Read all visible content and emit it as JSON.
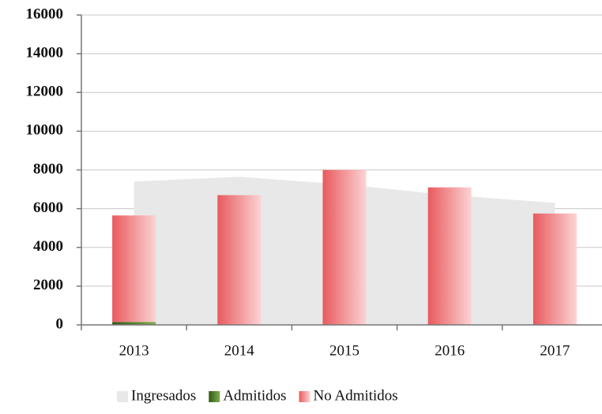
{
  "chart_data": {
    "type": "stacked_bar_area",
    "categories": [
      "2013",
      "2014",
      "2015",
      "2016",
      "2017"
    ],
    "series": [
      {
        "name": "Ingresados",
        "color": "#e8e8e8",
        "kind": "area",
        "values": [
          7400,
          7650,
          7250,
          6700,
          6300
        ]
      },
      {
        "name": "Admitidos",
        "color": "#3d6b1f",
        "kind": "bar",
        "values": [
          150,
          0,
          0,
          0,
          0
        ]
      },
      {
        "name": "No Admitidos",
        "color": "#e85a5e",
        "kind": "bar",
        "values": [
          5500,
          6700,
          8000,
          7100,
          5750
        ]
      }
    ],
    "ylim": [
      0,
      16000
    ],
    "yticks": [
      0,
      2000,
      4000,
      6000,
      8000,
      10000,
      12000,
      14000,
      16000
    ],
    "grid": true,
    "legend": "bottom"
  }
}
